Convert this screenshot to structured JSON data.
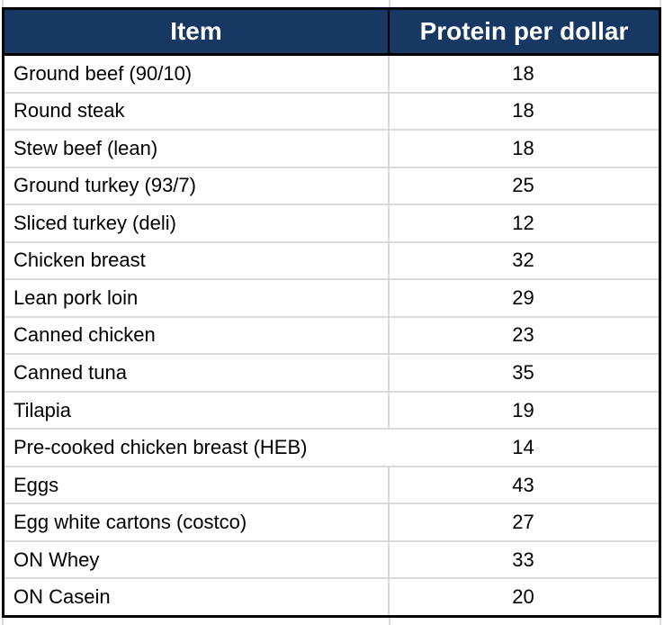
{
  "colors": {
    "header_bg": "#173862",
    "header_text": "#ffffff",
    "gridline": "#d9d9d9",
    "outer_border": "#000000",
    "cell_text": "#000000"
  },
  "chart_data": {
    "type": "table",
    "title": "",
    "columns": [
      "Item",
      "Protein per dollar"
    ],
    "rows": [
      {
        "item": "Ground beef (90/10)",
        "protein_per_dollar": 18,
        "col_divider": true
      },
      {
        "item": "Round steak",
        "protein_per_dollar": 18,
        "col_divider": true
      },
      {
        "item": "Stew beef (lean)",
        "protein_per_dollar": 18,
        "col_divider": true
      },
      {
        "item": "Ground turkey (93/7)",
        "protein_per_dollar": 25,
        "col_divider": true
      },
      {
        "item": "Sliced turkey (deli)",
        "protein_per_dollar": 12,
        "col_divider": true
      },
      {
        "item": "Chicken breast",
        "protein_per_dollar": 32,
        "col_divider": true
      },
      {
        "item": "Lean pork loin",
        "protein_per_dollar": 29,
        "col_divider": true
      },
      {
        "item": "Canned chicken",
        "protein_per_dollar": 23,
        "col_divider": true
      },
      {
        "item": "Canned tuna",
        "protein_per_dollar": 35,
        "col_divider": true
      },
      {
        "item": "Tilapia",
        "protein_per_dollar": 19,
        "col_divider": true
      },
      {
        "item": "Pre-cooked chicken breast (HEB)",
        "protein_per_dollar": 14,
        "col_divider": false
      },
      {
        "item": "Eggs",
        "protein_per_dollar": 43,
        "col_divider": true
      },
      {
        "item": "Egg white cartons (costco)",
        "protein_per_dollar": 27,
        "col_divider": true
      },
      {
        "item": "ON Whey",
        "protein_per_dollar": 33,
        "col_divider": true
      },
      {
        "item": "ON Casein",
        "protein_per_dollar": 20,
        "col_divider": true
      }
    ]
  }
}
